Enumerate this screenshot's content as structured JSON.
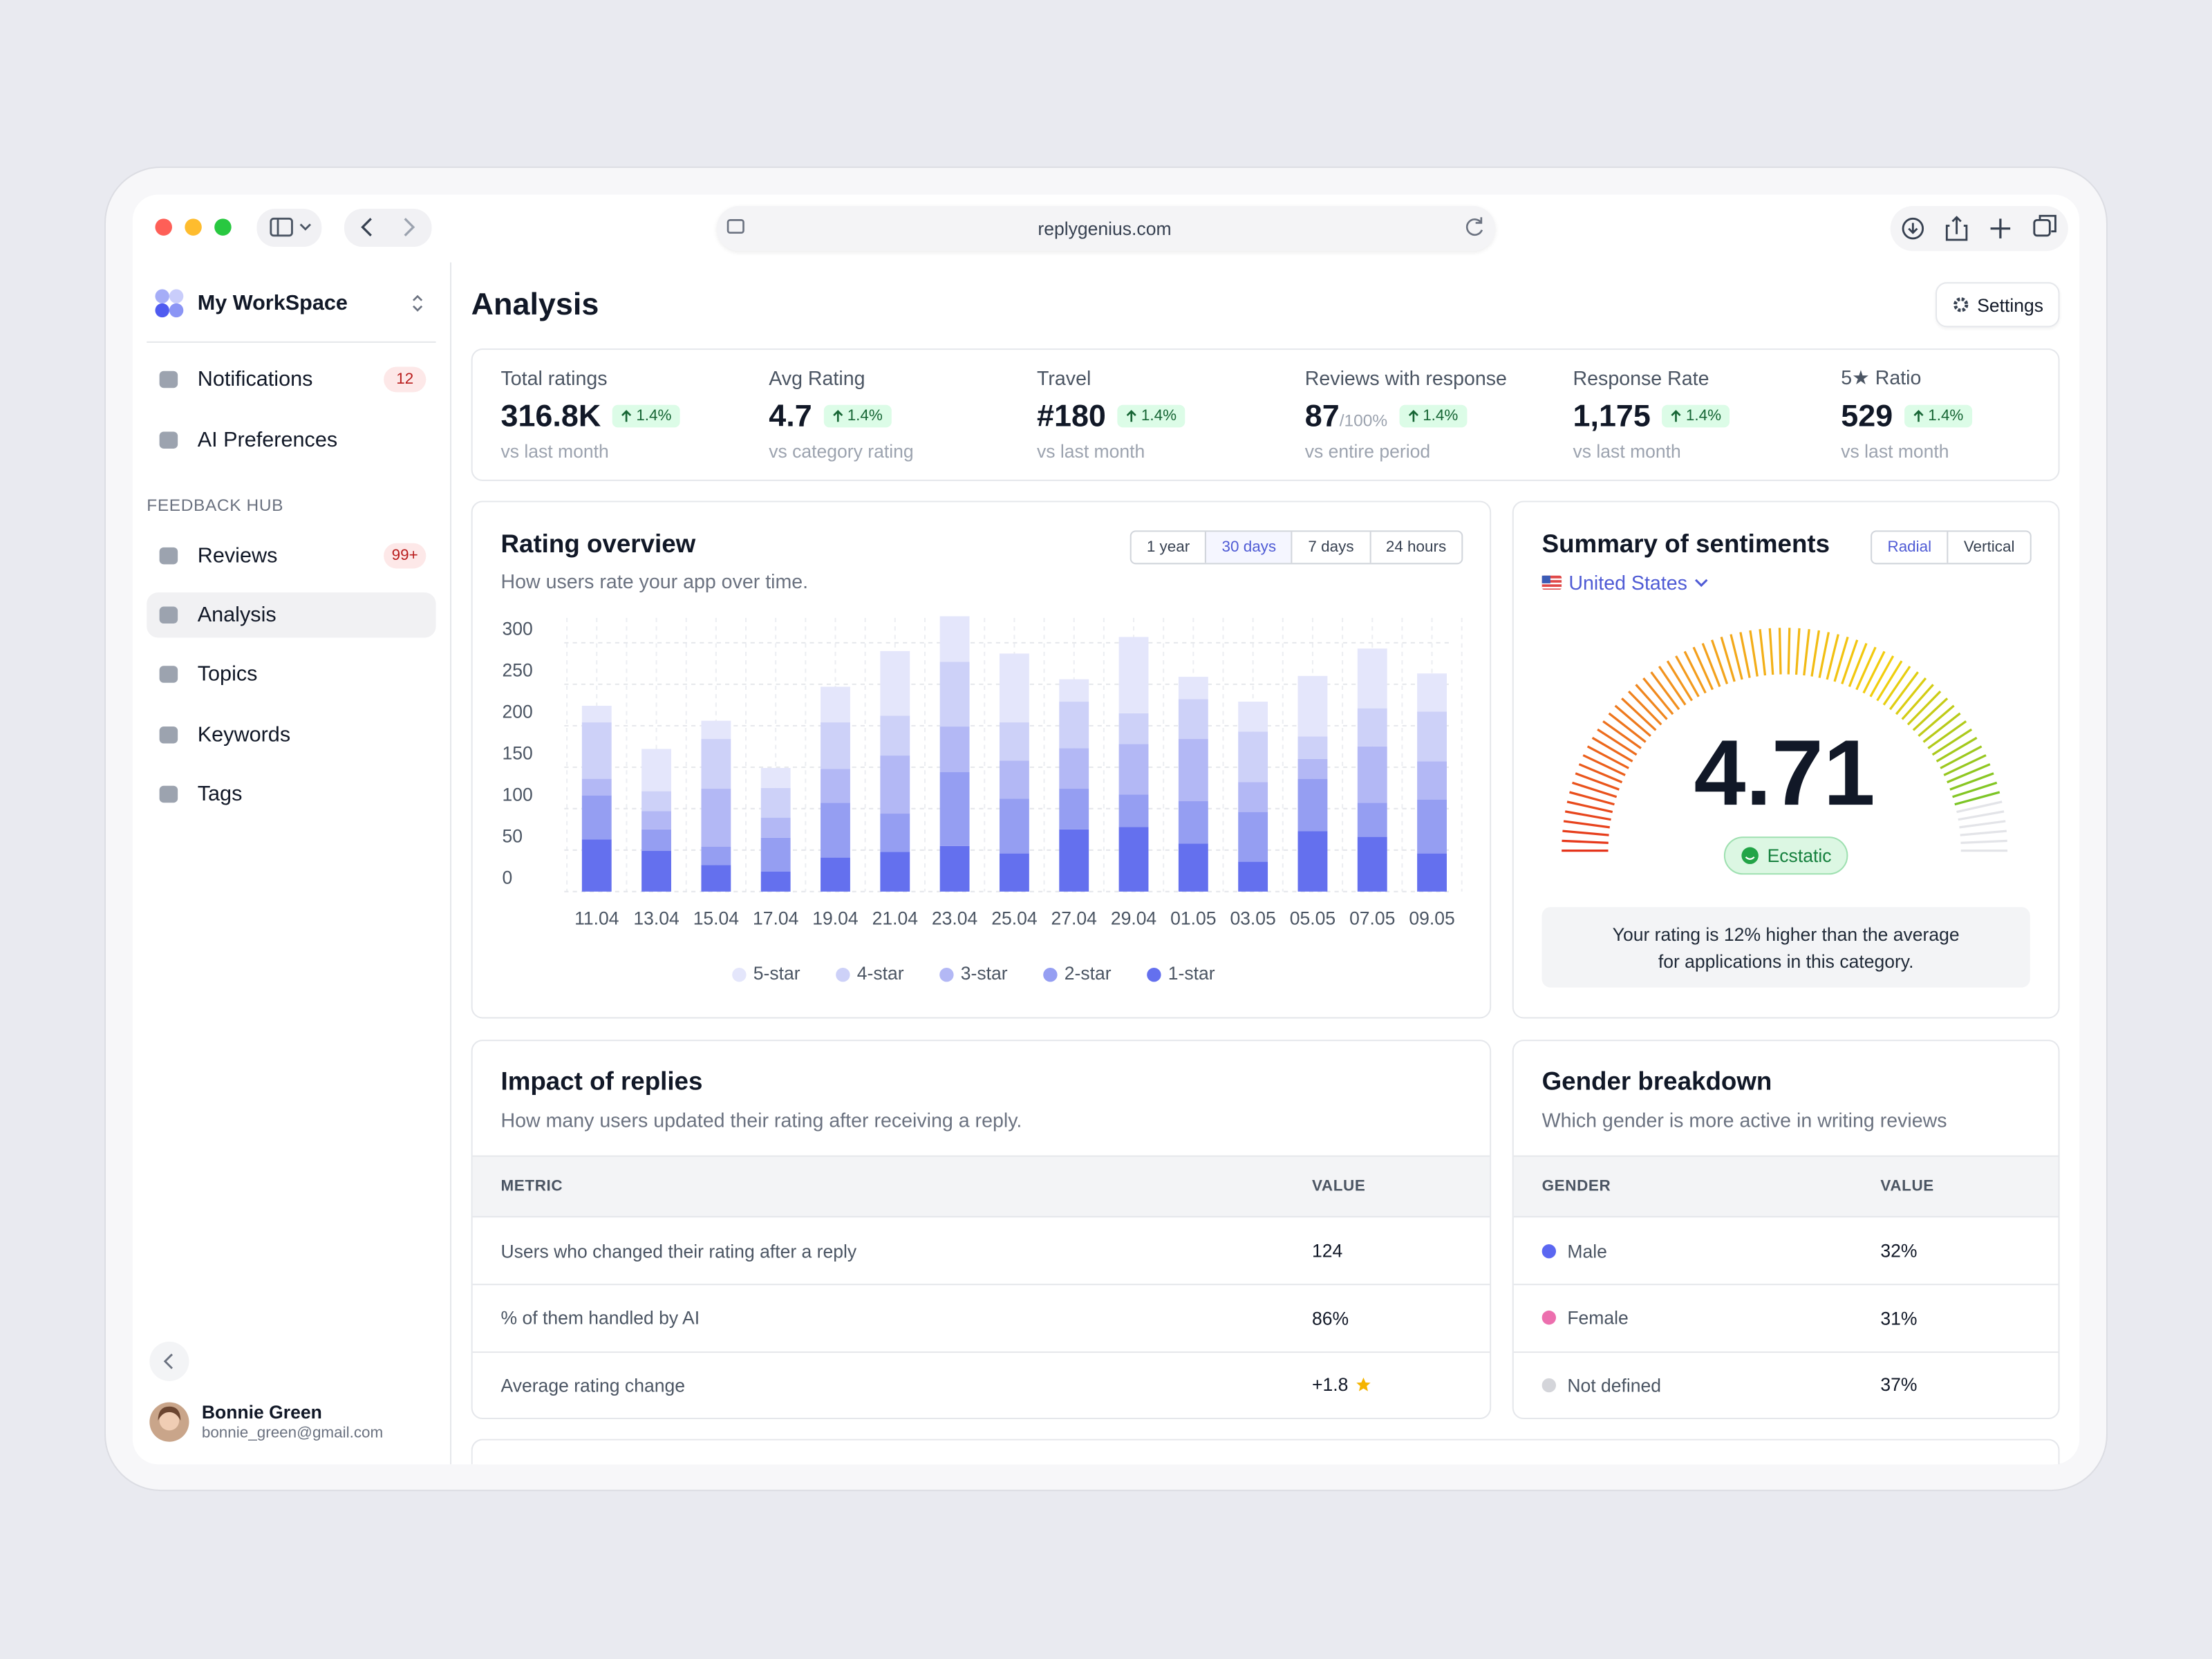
{
  "browser": {
    "url": "replygenius.com"
  },
  "sidebar": {
    "workspace": "My WorkSpace",
    "nav": [
      {
        "label": "Notifications",
        "badge": "12"
      },
      {
        "label": "AI Preferences"
      }
    ],
    "section": "FEEDBACK HUB",
    "hub": [
      {
        "label": "Reviews",
        "badge": "99+"
      },
      {
        "label": "Analysis"
      },
      {
        "label": "Topics"
      },
      {
        "label": "Keywords"
      },
      {
        "label": "Tags"
      }
    ],
    "active": 1,
    "user": {
      "name": "Bonnie Green",
      "email": "bonnie_green@gmail.com"
    }
  },
  "header": {
    "title": "Analysis",
    "settings": "Settings"
  },
  "kpis": [
    {
      "label": "Total ratings",
      "value": "316.8K",
      "change": "1.4%",
      "note": "vs last month"
    },
    {
      "label": "Avg Rating",
      "value": "4.7",
      "change": "1.4%",
      "note": "vs category rating"
    },
    {
      "label": "Travel",
      "value": "#180",
      "change": "1.4%",
      "note": "vs last month"
    },
    {
      "label": "Reviews with response",
      "value": "87",
      "suffix": "/100%",
      "change": "1.4%",
      "note": "vs entire period"
    },
    {
      "label": "Response Rate",
      "value": "1,175",
      "change": "1.4%",
      "note": "vs last month"
    },
    {
      "label": "5★ Ratio",
      "value": "529",
      "change": "1.4%",
      "note": "vs last month"
    }
  ],
  "rating_tabs": {
    "items": [
      "1 year",
      "30 days",
      "7 days",
      "24 hours"
    ],
    "active": 1
  },
  "sentiment_controls": {
    "views": [
      "Radial",
      "Vertical"
    ],
    "active": 0,
    "region": "United States"
  },
  "chart_data": [
    {
      "type": "bar",
      "stacked": true,
      "title": "Rating overview",
      "subtitle": "How users rate your app over time.",
      "categories": [
        "11.04",
        "13.04",
        "15.04",
        "17.04",
        "19.04",
        "21.04",
        "23.04",
        "25.04",
        "27.04",
        "29.04",
        "01.05",
        "03.05",
        "05.05",
        "07.05",
        "09.05"
      ],
      "series": [
        {
          "name": "5-star",
          "color": "#e4e6fb",
          "values": [
            20,
            51,
            22,
            24,
            43,
            78,
            55,
            83,
            27,
            92,
            27,
            36,
            73,
            72,
            46
          ]
        },
        {
          "name": "4-star",
          "color": "#cdd1f8",
          "values": [
            68,
            24,
            60,
            36,
            56,
            48,
            78,
            46,
            56,
            37,
            48,
            61,
            27,
            46,
            60
          ]
        },
        {
          "name": "3-star",
          "color": "#b3b8f5",
          "values": [
            20,
            22,
            70,
            24,
            41,
            70,
            55,
            46,
            49,
            61,
            75,
            36,
            24,
            68,
            46
          ]
        },
        {
          "name": "2-star",
          "color": "#959ef2",
          "values": [
            53,
            26,
            22,
            41,
            66,
            46,
            89,
            66,
            49,
            39,
            51,
            60,
            63,
            41,
            65
          ]
        },
        {
          "name": "1-star",
          "color": "#6470ee",
          "values": [
            63,
            49,
            32,
            24,
            41,
            48,
            55,
            46,
            75,
            78,
            58,
            36,
            73,
            66,
            46
          ]
        }
      ],
      "ylim": [
        0,
        330
      ],
      "yticks": [
        0,
        50,
        100,
        150,
        200,
        250,
        300
      ],
      "grid": true,
      "legend": "bottom"
    },
    {
      "type": "gauge",
      "title": "Summary of sentiments",
      "value": 4.71,
      "ylim": [
        1,
        5
      ],
      "label": "Ecstatic",
      "colors": [
        "#e5341b",
        "#f39a1e",
        "#f2cf0d",
        "#54c22e"
      ],
      "track_color": "#e3e4e8",
      "note": "Your rating is 12% higher than the average for applications in this category."
    }
  ],
  "impact": {
    "title": "Impact of replies",
    "subtitle": "How many users updated their rating after receiving a reply.",
    "columns": [
      "METRIC",
      "VALUE"
    ],
    "rows": [
      [
        "Users who changed their rating after a reply",
        "124"
      ],
      [
        "% of them handled by AI",
        "86%"
      ],
      [
        "Average rating change",
        "+1.8"
      ]
    ]
  },
  "gender": {
    "title": "Gender breakdown",
    "subtitle": "Which gender is more active in writing reviews",
    "columns": [
      "GENDER",
      "VALUE"
    ],
    "rows": [
      {
        "label": "Male",
        "value": "32%",
        "color": "#5b67f1"
      },
      {
        "label": "Female",
        "value": "31%",
        "color": "#ec6fae"
      },
      {
        "label": "Not defined",
        "value": "37%",
        "color": "#d4d5da"
      }
    ]
  }
}
